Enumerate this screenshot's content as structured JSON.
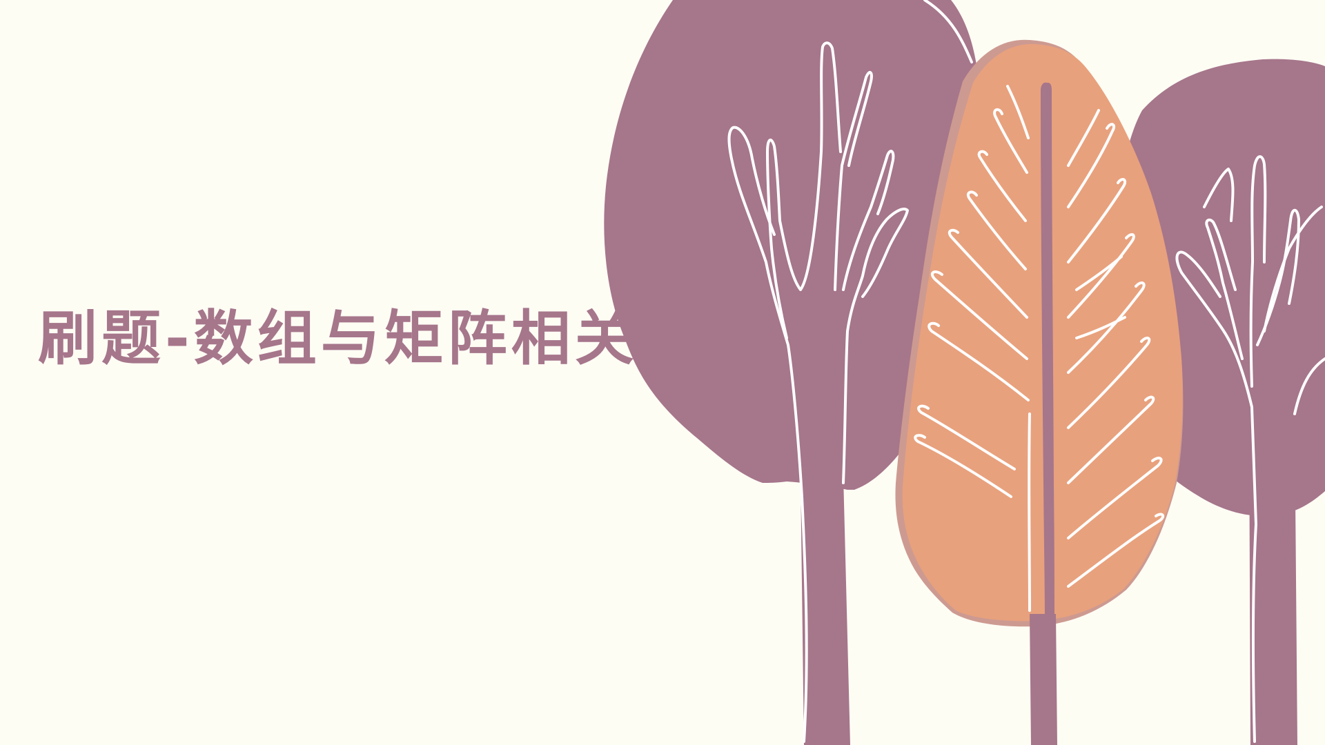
{
  "slide": {
    "title": "刷题-数组与矩阵相关"
  },
  "colors": {
    "background": "#fdfdf4",
    "title": "#a6768b",
    "tree_purple": "#a6768b",
    "tree_orange": "#e8a17d",
    "branch_line": "#ffffff"
  },
  "illustration": {
    "icons": [
      "left-purple-tree-icon",
      "center-orange-tree-icon",
      "right-purple-tree-icon"
    ]
  }
}
